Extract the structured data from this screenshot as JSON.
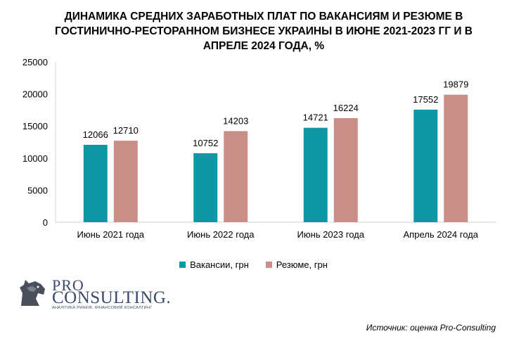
{
  "title_lines": [
    "ДИНАМИКА СРЕДНИХ ЗАРАБОТНЫХ ПЛАТ ПО ВАКАНСИЯМ И РЕЗЮМЕ В",
    "ГОСТИНИЧНО-РЕСТОРАННОМ БИЗНЕСЕ УКРАИНЫ В ИЮНЕ 2021-2023 ГГ И В",
    "АПРЕЛЕ 2024 ГОДА, %"
  ],
  "logo": {
    "word1": "PRO",
    "word2": "CONSULTING.",
    "tagline": "АНАЛІТИКА РИНКІВ. ФІНАНСОВИЙ КОНСАЛТИНГ"
  },
  "source": "Источник: оценка Pro-Consulting",
  "chart_data": {
    "type": "bar",
    "title": "ДИНАМИКА СРЕДНИХ ЗАРАБОТНЫХ ПЛАТ ПО ВАКАНСИЯМ И РЕЗЮМЕ В ГОСТИНИЧНО-РЕСТОРАННОМ БИЗНЕСЕ УКРАИНЫ В ИЮНЕ 2021-2023 ГГ И В АПРЕЛЕ 2024 ГОДА, %",
    "categories": [
      "Июнь 2021 года",
      "Июнь 2022 года",
      "Июнь 2023 года",
      "Апрель 2024 года"
    ],
    "series": [
      {
        "name": "Вакансии, грн",
        "values": [
          12066,
          10752,
          14721,
          17552
        ],
        "color": "#0e97a4"
      },
      {
        "name": "Резюме, грн",
        "values": [
          12710,
          14203,
          16224,
          19879
        ],
        "color": "#c98e87"
      }
    ],
    "ylim": [
      0,
      25000
    ],
    "yticks": [
      0,
      5000,
      10000,
      15000,
      20000,
      25000
    ],
    "grid": false,
    "legend": "bottom"
  }
}
